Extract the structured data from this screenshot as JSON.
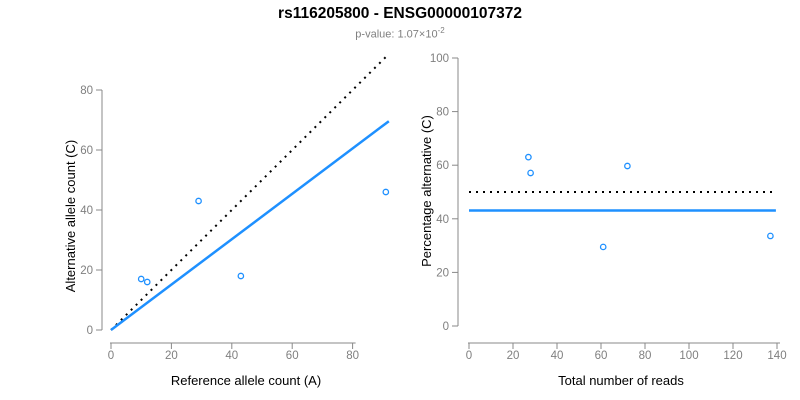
{
  "header": {
    "title": "rs116205800 - ENSG00000107372",
    "subtitle_prefix": "p-value: 1.07×10",
    "subtitle_exponent": "-2"
  },
  "colors": {
    "accent_blue": "#1E90FF",
    "line_black": "#000000",
    "axis_gray": "#888888",
    "tick_label_gray": "#7F7F7F",
    "subtitle_gray": "#7F7F7F",
    "axis_title_black": "#000000"
  },
  "chart_data": [
    {
      "type": "scatter",
      "name": "allele-counts",
      "xlabel": "Reference allele count (A)",
      "ylabel": "Alternative allele count (C)",
      "xlim": [
        0,
        92
      ],
      "ylim": [
        0,
        92
      ],
      "xticks": [
        0,
        20,
        40,
        60,
        80
      ],
      "yticks": [
        0,
        20,
        40,
        60,
        80
      ],
      "grid": false,
      "points": [
        [
          10,
          17
        ],
        [
          12,
          16
        ],
        [
          29,
          43
        ],
        [
          43,
          18
        ],
        [
          91,
          46
        ]
      ],
      "lines": [
        {
          "name": "identity-line",
          "style": "dotted",
          "color": "#000000",
          "x1": 0,
          "y1": 0,
          "x2": 91,
          "y2": 91
        },
        {
          "name": "regression-line",
          "style": "solid",
          "color": "#1E90FF",
          "x1": 0,
          "y1": 0,
          "x2": 92,
          "y2": 69.6
        }
      ]
    },
    {
      "type": "scatter",
      "name": "percentage-vs-reads",
      "xlabel": "Total number of reads",
      "ylabel": "Percentage alternative (C)",
      "xlim": [
        0,
        140
      ],
      "ylim": [
        0,
        100
      ],
      "xticks": [
        0,
        20,
        40,
        60,
        80,
        100,
        120,
        140
      ],
      "yticks": [
        0,
        20,
        40,
        60,
        80,
        100
      ],
      "grid": false,
      "points": [
        [
          27,
          63.0
        ],
        [
          28,
          57.1
        ],
        [
          61,
          29.5
        ],
        [
          72,
          59.7
        ],
        [
          137,
          33.6
        ]
      ],
      "lines": [
        {
          "name": "expected-percentage-line",
          "style": "dotted",
          "color": "#000000",
          "x1": 0,
          "y1": 50,
          "x2": 139.5,
          "y2": 50
        },
        {
          "name": "mean-percentage-line",
          "style": "solid",
          "color": "#1E90FF",
          "x1": 0,
          "y1": 43.1,
          "x2": 139.5,
          "y2": 43.1
        }
      ]
    }
  ]
}
